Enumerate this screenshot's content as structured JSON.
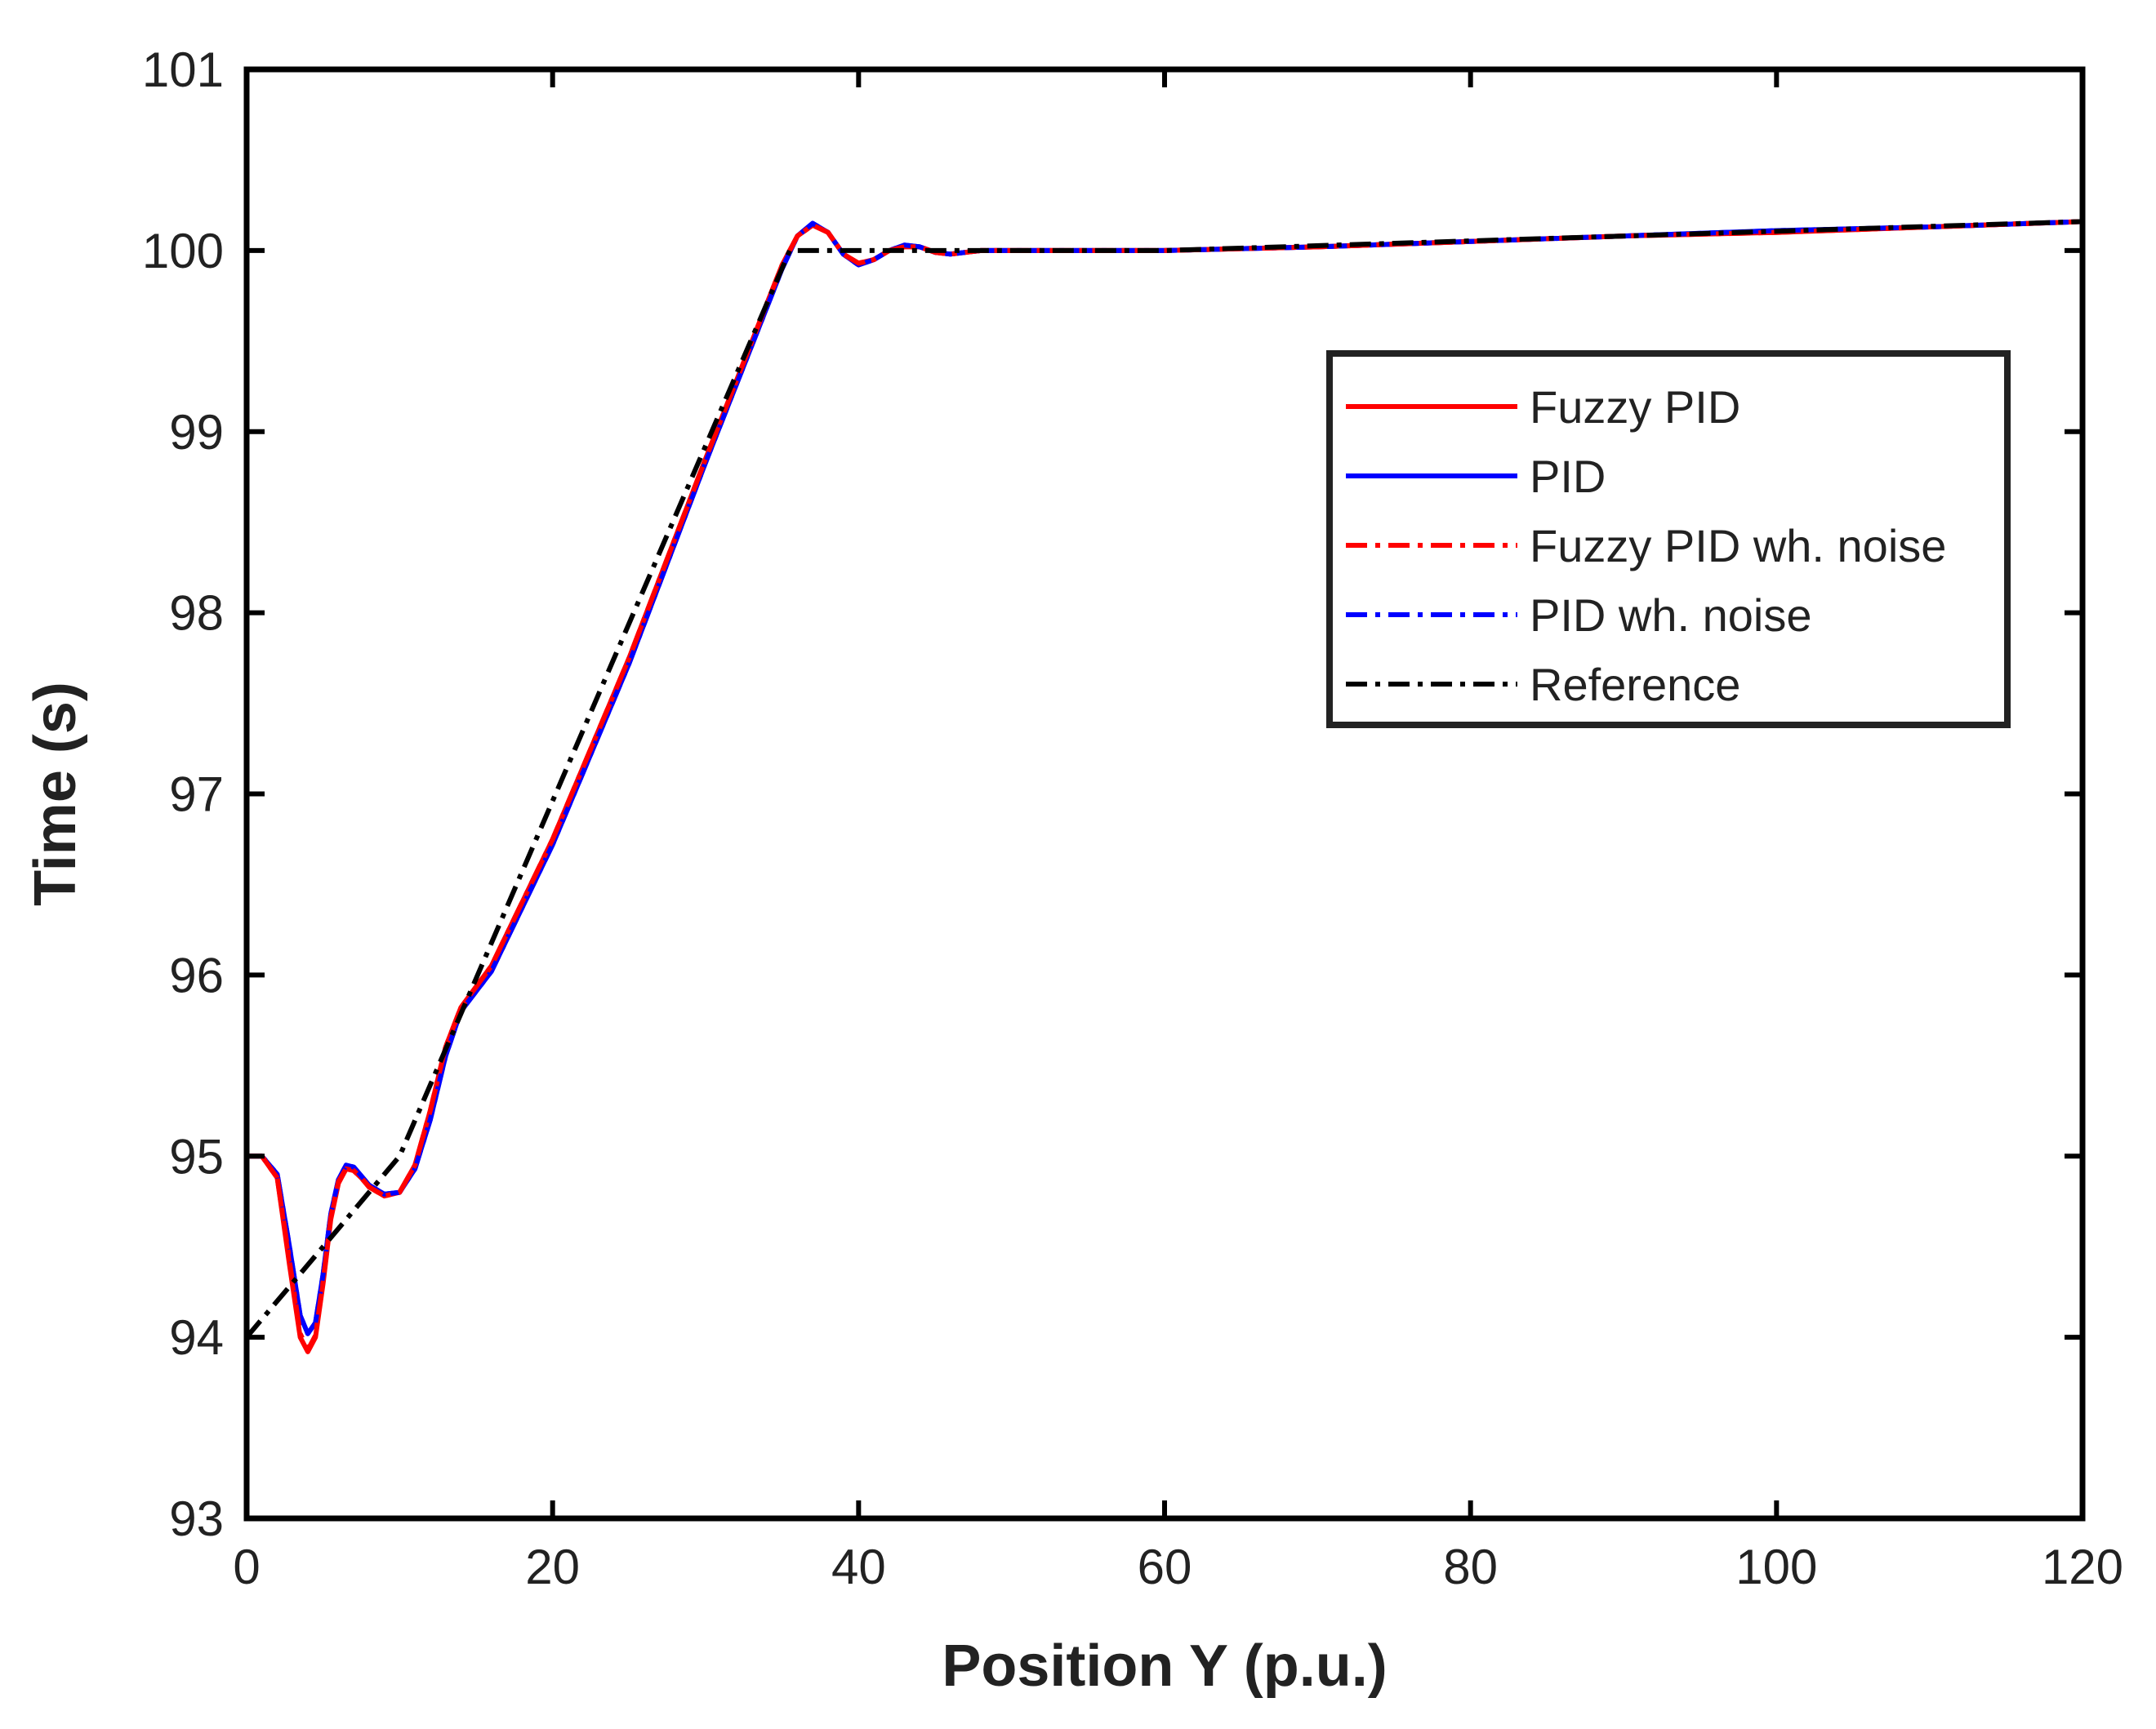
{
  "chart_data": {
    "type": "line",
    "xlabel": "Position Y (p.u.)",
    "ylabel": "Time (s)",
    "xlim": [
      0,
      120
    ],
    "ylim": [
      93,
      101
    ],
    "xticks": [
      0,
      20,
      40,
      60,
      80,
      100,
      120
    ],
    "yticks": [
      93,
      94,
      95,
      96,
      97,
      98,
      99,
      100,
      101
    ],
    "xtick_labels": [
      "0",
      "20",
      "40",
      "60",
      "80",
      "100",
      "120"
    ],
    "ytick_labels": [
      "93",
      "94",
      "95",
      "96",
      "97",
      "98",
      "99",
      "100",
      "101"
    ],
    "grid": false,
    "legend_position": "upper-right",
    "series": [
      {
        "name": "Fuzzy PID",
        "color": "#ff0000",
        "style": "solid",
        "x": [
          0,
          1,
          2,
          2.8,
          3.5,
          4,
          4.5,
          5,
          5.5,
          6,
          6.5,
          7,
          7.5,
          8,
          9,
          10,
          11,
          12,
          13,
          14,
          16,
          20,
          25,
          30,
          35,
          36,
          37,
          38,
          39,
          40,
          41,
          42,
          43,
          44,
          45,
          46,
          48,
          50,
          60,
          70,
          80,
          90,
          100,
          110,
          120
        ],
        "y": [
          95.0,
          95.0,
          94.88,
          94.4,
          94.0,
          93.92,
          94.0,
          94.3,
          94.65,
          94.85,
          94.93,
          94.92,
          94.88,
          94.83,
          94.78,
          94.8,
          94.95,
          95.25,
          95.6,
          95.82,
          96.05,
          96.75,
          97.75,
          98.85,
          99.92,
          100.08,
          100.14,
          100.1,
          99.98,
          99.93,
          99.95,
          100.0,
          100.02,
          100.02,
          99.99,
          99.98,
          100.0,
          100.0,
          100.0,
          100.02,
          100.05,
          100.08,
          100.1,
          100.13,
          100.16
        ]
      },
      {
        "name": "PID",
        "color": "#0000ff",
        "style": "solid",
        "x": [
          0,
          1,
          2,
          2.8,
          3.5,
          4,
          4.5,
          5,
          5.5,
          6,
          6.5,
          7,
          7.5,
          8,
          9,
          10,
          11,
          12,
          13,
          14,
          16,
          20,
          25,
          30,
          35,
          36,
          37,
          38,
          39,
          40,
          41,
          42,
          43,
          44,
          45,
          46,
          48,
          50,
          60,
          70,
          80,
          90,
          100,
          110,
          120
        ],
        "y": [
          95.0,
          95.0,
          94.9,
          94.5,
          94.12,
          94.02,
          94.08,
          94.35,
          94.68,
          94.87,
          94.95,
          94.94,
          94.89,
          94.84,
          94.79,
          94.8,
          94.93,
          95.2,
          95.55,
          95.8,
          96.02,
          96.72,
          97.72,
          98.83,
          99.9,
          100.08,
          100.15,
          100.1,
          99.98,
          99.92,
          99.95,
          100.0,
          100.03,
          100.02,
          99.99,
          99.98,
          100.0,
          100.0,
          100.0,
          100.02,
          100.05,
          100.08,
          100.11,
          100.13,
          100.16
        ]
      },
      {
        "name": "Fuzzy PID wh. noise",
        "color": "#ff0000",
        "style": "dashdot",
        "x": [
          0,
          1,
          2,
          2.8,
          3.5,
          4,
          4.5,
          5,
          5.5,
          6,
          6.5,
          7,
          7.5,
          8,
          9,
          10,
          11,
          12,
          13,
          14,
          16,
          20,
          25,
          30,
          35,
          36,
          37,
          38,
          39,
          40,
          41,
          42,
          43,
          44,
          45,
          46,
          48,
          50,
          60,
          70,
          80,
          90,
          100,
          110,
          120
        ],
        "y": [
          95.0,
          95.0,
          94.88,
          94.42,
          94.02,
          93.93,
          94.01,
          94.31,
          94.66,
          94.86,
          94.93,
          94.92,
          94.88,
          94.83,
          94.78,
          94.8,
          94.95,
          95.25,
          95.6,
          95.82,
          96.05,
          96.75,
          97.75,
          98.85,
          99.92,
          100.08,
          100.14,
          100.1,
          99.98,
          99.93,
          99.95,
          100.0,
          100.02,
          100.02,
          99.99,
          99.98,
          100.0,
          100.0,
          100.0,
          100.02,
          100.05,
          100.08,
          100.1,
          100.13,
          100.16
        ]
      },
      {
        "name": "PID wh. noise",
        "color": "#0000ff",
        "style": "dashdot",
        "x": [
          0,
          1,
          2,
          2.8,
          3.5,
          4,
          4.5,
          5,
          5.5,
          6,
          6.5,
          7,
          7.5,
          8,
          9,
          10,
          11,
          12,
          13,
          14,
          16,
          20,
          25,
          30,
          35,
          36,
          37,
          38,
          39,
          40,
          41,
          42,
          43,
          44,
          45,
          46,
          48,
          50,
          60,
          70,
          80,
          90,
          100,
          110,
          120
        ],
        "y": [
          95.0,
          95.0,
          94.9,
          94.5,
          94.12,
          94.02,
          94.08,
          94.35,
          94.68,
          94.87,
          94.95,
          94.94,
          94.89,
          94.84,
          94.79,
          94.8,
          94.93,
          95.2,
          95.55,
          95.8,
          96.02,
          96.72,
          97.72,
          98.83,
          99.9,
          100.08,
          100.15,
          100.1,
          99.98,
          99.92,
          99.95,
          100.0,
          100.03,
          100.02,
          99.99,
          99.98,
          100.0,
          100.0,
          100.0,
          100.02,
          100.05,
          100.08,
          100.11,
          100.13,
          100.16
        ]
      },
      {
        "name": "Reference",
        "color": "#000000",
        "style": "dashdot",
        "x": [
          0,
          10,
          35.5,
          40,
          60,
          120
        ],
        "y": [
          94.0,
          95.0,
          100.0,
          100.0,
          100.0,
          100.16
        ]
      }
    ]
  }
}
